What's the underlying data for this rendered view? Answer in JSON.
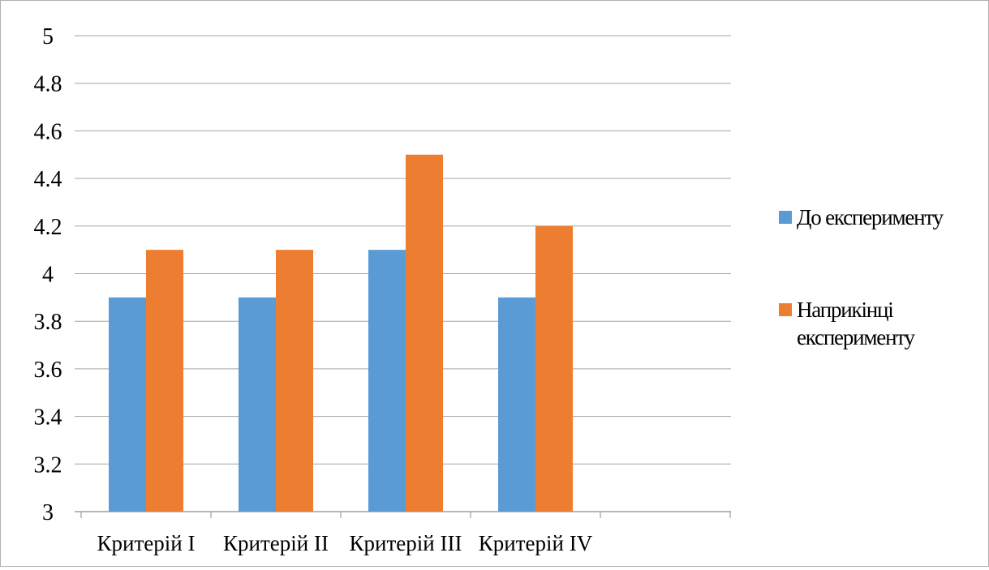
{
  "chart_data": {
    "type": "bar",
    "title": "",
    "xlabel": "",
    "ylabel": "",
    "categories": [
      "Критерій I",
      "Критерій II",
      "Критерій III",
      "Критерій IV"
    ],
    "y_ticks": [
      "3",
      "3.2",
      "3.4",
      "3.6",
      "3.8",
      "4",
      "4.2",
      "4.4",
      "4.6",
      "4.8",
      "5"
    ],
    "ylim": [
      3,
      5
    ],
    "grid": true,
    "legend_position": "right",
    "series": [
      {
        "name": "До експерименту",
        "color": "#5b9bd5",
        "values": [
          3.9,
          3.9,
          4.1,
          3.9
        ]
      },
      {
        "name": "Наприкінці експерименту",
        "color": "#ed7d31",
        "values": [
          4.1,
          4.1,
          4.5,
          4.2
        ]
      }
    ]
  }
}
